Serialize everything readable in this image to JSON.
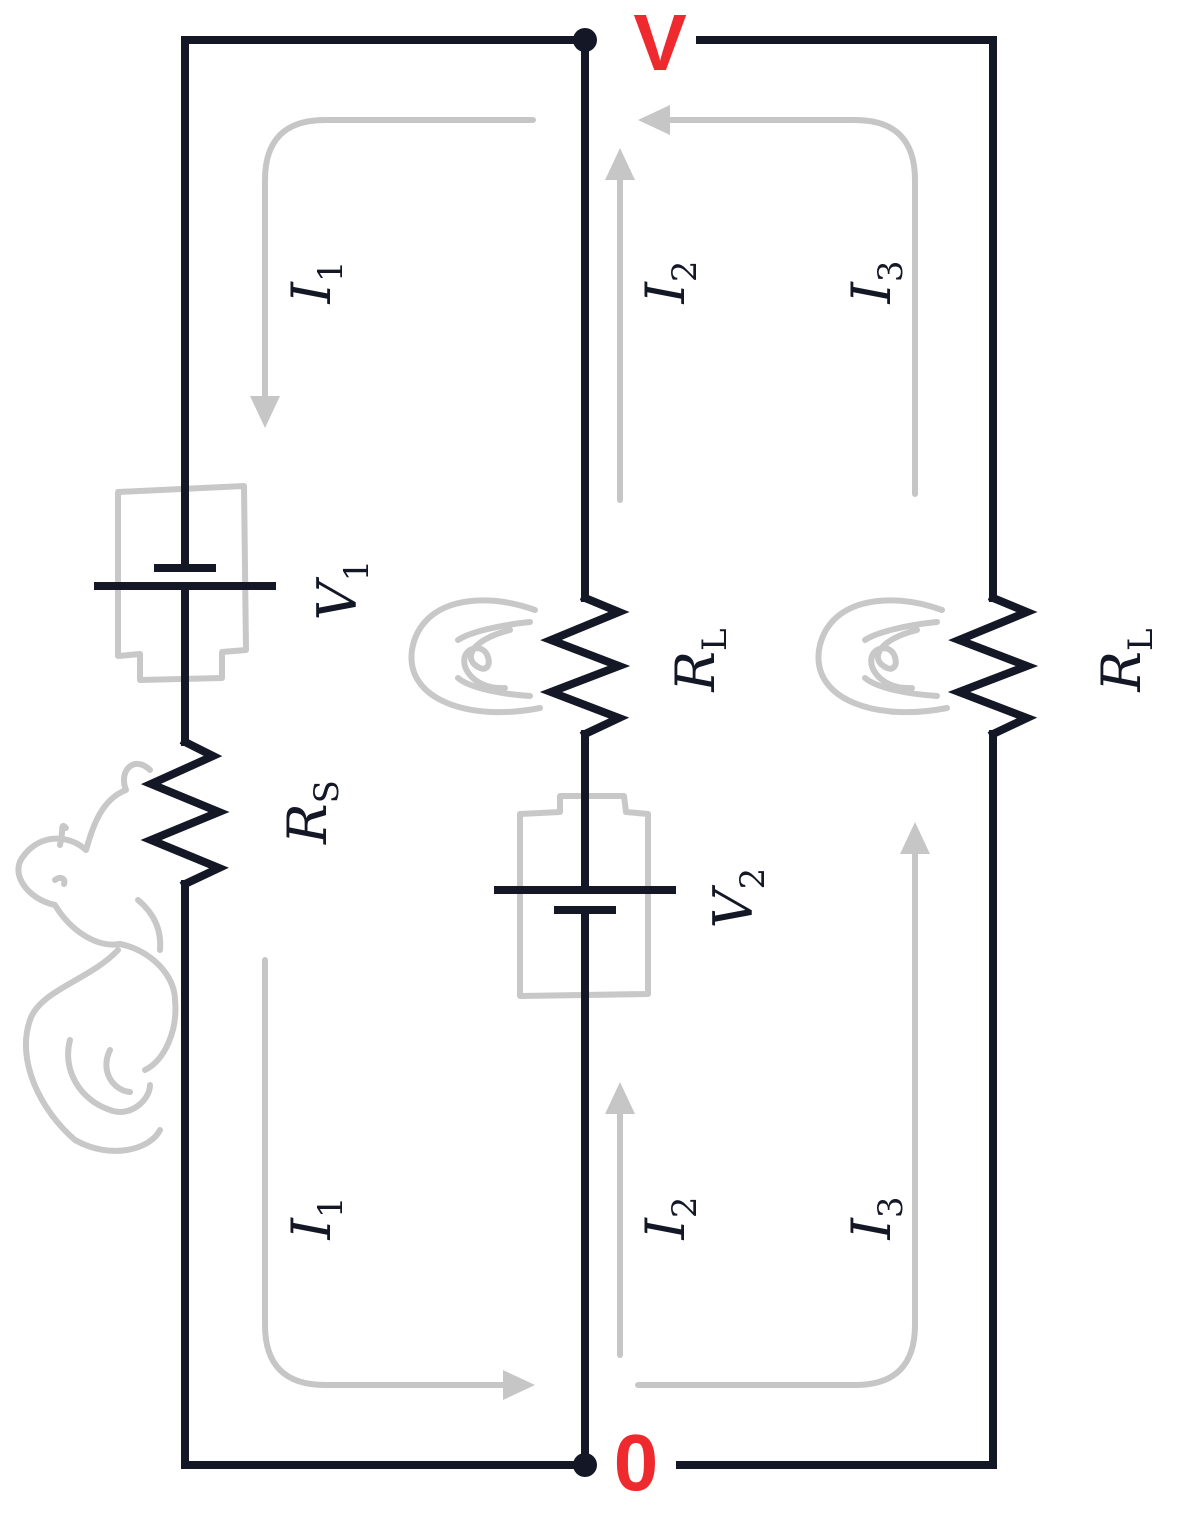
{
  "nodes": {
    "top": {
      "label": "V",
      "color": "#ee2a2e"
    },
    "bottom": {
      "label": "0",
      "color": "#ee2a2e"
    }
  },
  "components": {
    "v1": {
      "symbol": "V",
      "subscript": "1"
    },
    "rs": {
      "symbol": "R",
      "subscript": "S"
    },
    "v2": {
      "symbol": "V",
      "subscript": "2"
    },
    "rl_middle": {
      "symbol": "R",
      "subscript": "L"
    },
    "rl_right": {
      "symbol": "R",
      "subscript": "L"
    }
  },
  "currents": {
    "i1": {
      "symbol": "I",
      "subscript": "1"
    },
    "i2": {
      "symbol": "I",
      "subscript": "2"
    },
    "i3": {
      "symbol": "I",
      "subscript": "3"
    }
  },
  "colors": {
    "wire": "#141826",
    "current_arrows": "#c6c6c6",
    "illustrations": "#c8c8c8",
    "node_labels": "#ee2a2e"
  },
  "illustrations": [
    "battery-icon",
    "lightbulb-icon",
    "squirrel-icon"
  ]
}
